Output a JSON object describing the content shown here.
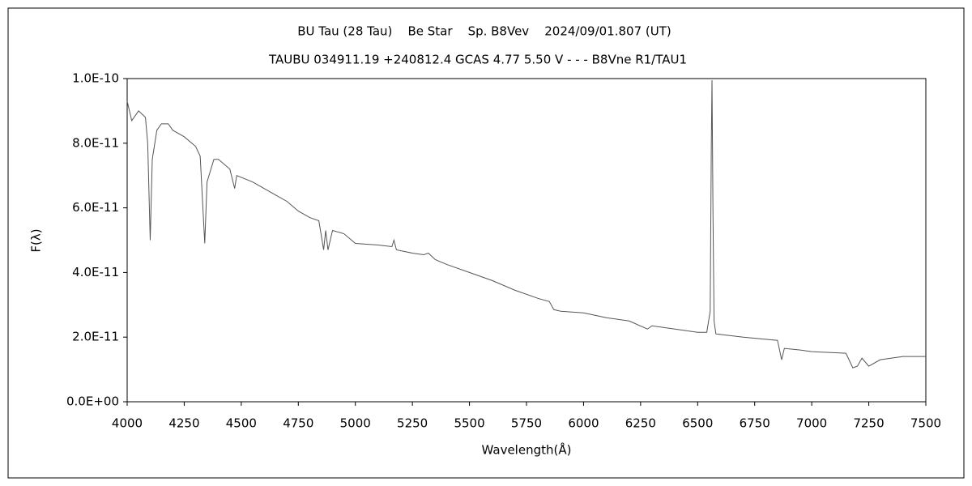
{
  "chart_data": {
    "type": "line",
    "title": "BU Tau (28 Tau)    Be Star    Sp. B8Vev    2024/09/01.807 (UT)",
    "subtitle": "TAUBU 034911.19 +240812.4 GCAS 4.77 5.50 V - - - B8Vne R1/TAU1",
    "x_label": "Wavelength(Å)",
    "y_label": "F(λ)",
    "x": [
      4000,
      4010,
      4020,
      4050,
      4080,
      4090,
      4101,
      4110,
      4130,
      4150,
      4180,
      4200,
      4250,
      4300,
      4320,
      4340,
      4350,
      4380,
      4400,
      4450,
      4471,
      4480,
      4550,
      4600,
      4650,
      4700,
      4750,
      4800,
      4840,
      4861,
      4870,
      4880,
      4900,
      4950,
      5000,
      5100,
      5160,
      5169,
      5180,
      5250,
      5300,
      5320,
      5350,
      5400,
      5500,
      5600,
      5700,
      5800,
      5850,
      5870,
      5900,
      6000,
      6100,
      6200,
      6280,
      6300,
      6400,
      6500,
      6540,
      6555,
      6560,
      6563,
      6567,
      6572,
      6580,
      6700,
      6850,
      6868,
      6880,
      6950,
      7000,
      7150,
      7180,
      7200,
      7220,
      7250,
      7300,
      7400,
      7500
    ],
    "series": [
      {
        "name": "F(λ)",
        "color": "#555555",
        "values": [
          9.3e-11,
          9e-11,
          8.7e-11,
          9e-11,
          8.8e-11,
          8e-11,
          5e-11,
          7.5e-11,
          8.4e-11,
          8.6e-11,
          8.6e-11,
          8.4e-11,
          8.2e-11,
          7.9e-11,
          7.6e-11,
          4.9e-11,
          6.8e-11,
          7.5e-11,
          7.5e-11,
          7.2e-11,
          6.6e-11,
          7e-11,
          6.8e-11,
          6.6e-11,
          6.4e-11,
          6.2e-11,
          5.9e-11,
          5.7e-11,
          5.6e-11,
          4.7e-11,
          5.3e-11,
          4.7e-11,
          5.3e-11,
          5.2e-11,
          4.9e-11,
          4.85e-11,
          4.8e-11,
          5e-11,
          4.7e-11,
          4.6e-11,
          4.55e-11,
          4.6e-11,
          4.4e-11,
          4.25e-11,
          4e-11,
          3.75e-11,
          3.45e-11,
          3.2e-11,
          3.1e-11,
          2.85e-11,
          2.8e-11,
          2.75e-11,
          2.6e-11,
          2.5e-11,
          2.25e-11,
          2.35e-11,
          2.25e-11,
          2.15e-11,
          2.15e-11,
          2.8e-11,
          8e-11,
          9.95e-11,
          6e-11,
          2.5e-11,
          2.1e-11,
          2e-11,
          1.9e-11,
          1.3e-11,
          1.65e-11,
          1.6e-11,
          1.55e-11,
          1.5e-11,
          1.05e-11,
          1.1e-11,
          1.35e-11,
          1.1e-11,
          1.3e-11,
          1.4e-11,
          1.4e-11
        ]
      }
    ],
    "xlim": [
      4000,
      7500
    ],
    "xticks": [
      4000,
      4250,
      4500,
      4750,
      5000,
      5250,
      5500,
      5750,
      6000,
      6250,
      6500,
      6750,
      7000,
      7250,
      7500
    ],
    "ylim": [
      0,
      1e-10
    ],
    "yticks": [
      {
        "value": 0,
        "label": "0.0E+00"
      },
      {
        "value": 2e-11,
        "label": "2.0E-11"
      },
      {
        "value": 4e-11,
        "label": "4.0E-11"
      },
      {
        "value": 6e-11,
        "label": "6.0E-11"
      },
      {
        "value": 8e-11,
        "label": "8.0E-11"
      },
      {
        "value": 1e-10,
        "label": "1.0E-10"
      }
    ],
    "grid": false
  }
}
